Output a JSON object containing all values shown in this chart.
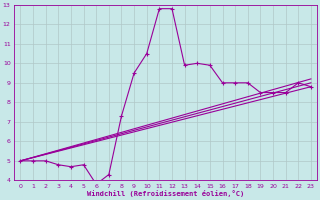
{
  "xlabel": "Windchill (Refroidissement éolien,°C)",
  "xlim": [
    -0.5,
    23.5
  ],
  "ylim": [
    4,
    13
  ],
  "xticks": [
    0,
    1,
    2,
    3,
    4,
    5,
    6,
    7,
    8,
    9,
    10,
    11,
    12,
    13,
    14,
    15,
    16,
    17,
    18,
    19,
    20,
    21,
    22,
    23
  ],
  "yticks": [
    4,
    5,
    6,
    7,
    8,
    9,
    10,
    11,
    12,
    13
  ],
  "bg_color": "#c8e8e8",
  "line_color": "#990099",
  "grid_color": "#b0c8c8",
  "line1_x": [
    0,
    1,
    2,
    3,
    4,
    5,
    6,
    7,
    8,
    9,
    10,
    11,
    12,
    13,
    14,
    15,
    16,
    17,
    18,
    19,
    20,
    21,
    22,
    23
  ],
  "line1_y": [
    5.0,
    5.0,
    5.0,
    4.8,
    4.7,
    4.8,
    3.8,
    4.3,
    7.3,
    9.5,
    10.5,
    12.8,
    12.8,
    9.9,
    10.0,
    9.9,
    9.0,
    9.0,
    9.0,
    8.5,
    8.5,
    8.5,
    9.0,
    8.8
  ],
  "line2_x": [
    0,
    23
  ],
  "line2_y": [
    5.0,
    8.8
  ],
  "line3_x": [
    0,
    23
  ],
  "line3_y": [
    5.0,
    9.0
  ],
  "line4_x": [
    0,
    23
  ],
  "line4_y": [
    5.0,
    9.2
  ]
}
